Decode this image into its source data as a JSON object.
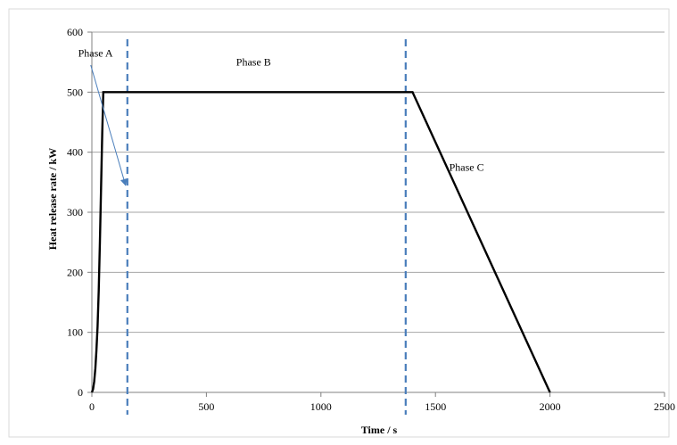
{
  "chart_data": {
    "type": "line",
    "xlabel": "Time / s",
    "ylabel": "Heat release rate  / kW",
    "xlim": [
      0,
      2500
    ],
    "ylim": [
      0,
      600
    ],
    "xticks": [
      0,
      500,
      1000,
      1500,
      2000,
      2500
    ],
    "yticks": [
      0,
      100,
      200,
      300,
      400,
      500,
      600
    ],
    "grid": "horizontal",
    "series": [
      {
        "x": [
          0,
          5,
          10,
          15,
          20,
          25,
          30,
          35,
          40,
          45,
          50,
          60,
          1400,
          2000
        ],
        "y": [
          0,
          5,
          18,
          40,
          70,
          110,
          170,
          250,
          340,
          430,
          500,
          500,
          500,
          0
        ],
        "color": "#000000"
      }
    ],
    "vlines": [
      {
        "x": 155,
        "color": "#4a7ebb",
        "style": "dashed"
      },
      {
        "x": 1370,
        "color": "#4a7ebb",
        "style": "dashed"
      }
    ],
    "annotations": [
      {
        "text": "Phase A",
        "x": -60,
        "y": 565
      },
      {
        "text": "Phase B",
        "x": 630,
        "y": 550
      },
      {
        "text": "Phase C",
        "x": 1560,
        "y": 375
      }
    ],
    "arrow": {
      "from": [
        -5,
        545
      ],
      "to": [
        147,
        345
      ],
      "color": "#4a7ebb"
    }
  }
}
